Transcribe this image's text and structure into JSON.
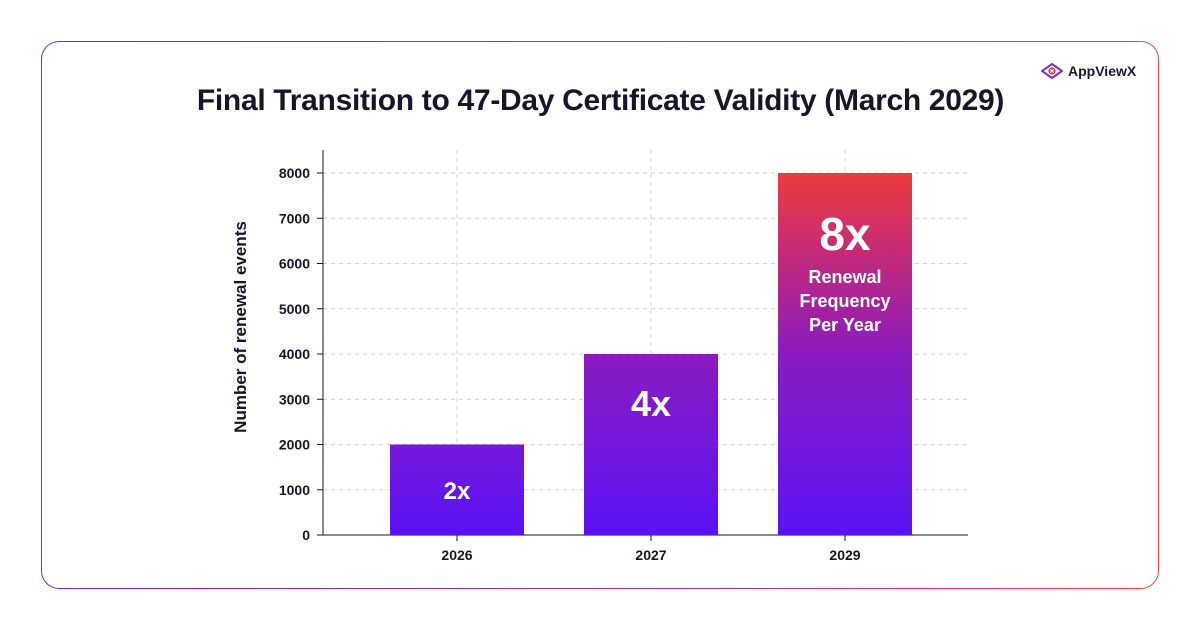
{
  "brand": {
    "name": "AppViewX",
    "icon": "appviewx-logo-icon",
    "accent": "#e0324b"
  },
  "title": "Final Transition to 47-Day Certificate Validity (March 2029)",
  "chart_data": {
    "type": "bar",
    "title": "Final Transition to 47-Day Certificate Validity (March 2029)",
    "xlabel": "",
    "ylabel": "Number of renewal events",
    "categories": [
      "2026",
      "2027",
      "2029"
    ],
    "values": [
      2000,
      4000,
      8000
    ],
    "ylim": [
      0,
      8000
    ],
    "yticks": [
      0,
      1000,
      2000,
      3000,
      4000,
      5000,
      6000,
      7000,
      8000
    ],
    "grid": true,
    "bar_labels": [
      "2x",
      "4x",
      "8x"
    ],
    "annotation": [
      "Renewal",
      "Frequency",
      "Per Year"
    ],
    "colors": {
      "bar_bottom": "#5b12f5",
      "bar_mid": "#9a1fa8",
      "bar_top": "#ec3b3b",
      "text": "#15162b",
      "grid": "#cfcfd8"
    }
  }
}
